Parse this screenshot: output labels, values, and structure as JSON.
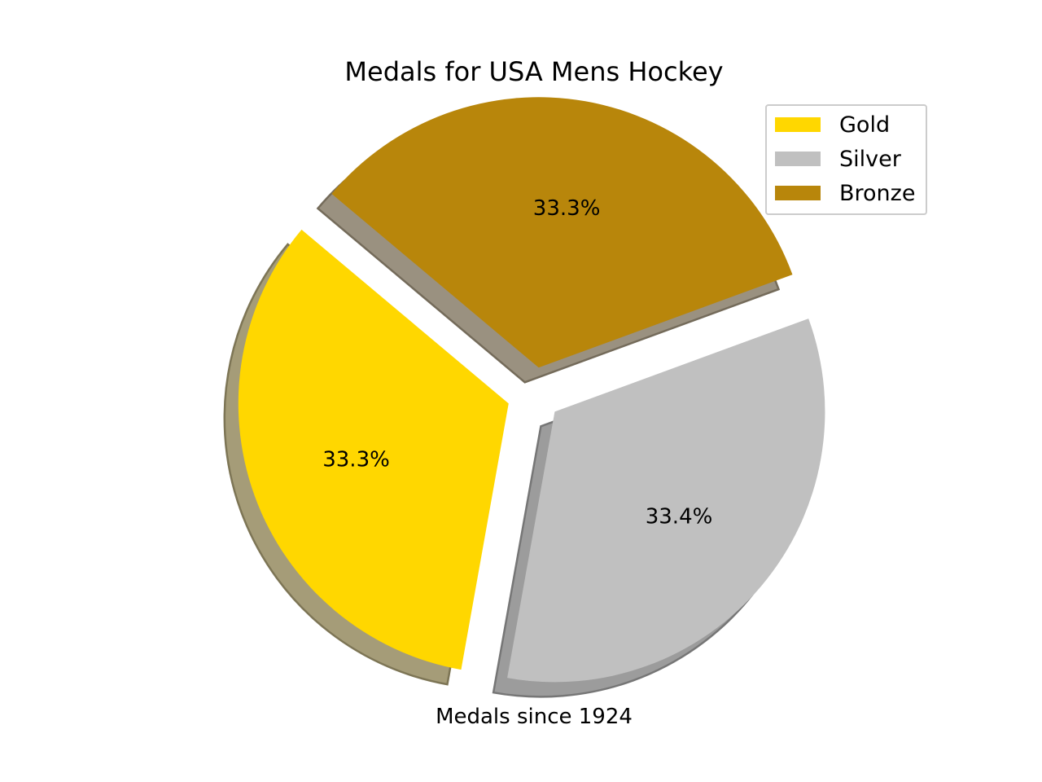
{
  "chart_data": {
    "type": "pie",
    "title": "Medals for USA Mens Hockey",
    "xlabel": "Medals since 1924",
    "categories": [
      "Gold",
      "Silver",
      "Bronze"
    ],
    "values": [
      33.3,
      33.4,
      33.3
    ],
    "value_labels": [
      "33.3%",
      "33.4%",
      "33.3%"
    ],
    "colors": [
      "#FFD700",
      "#C0C0C0",
      "#B8860B"
    ],
    "explode": [
      0.1,
      0.1,
      0.1
    ],
    "shadow": true,
    "start_angle_deg": 140,
    "legend": {
      "placement": "top-right",
      "entries": [
        "Gold",
        "Silver",
        "Bronze"
      ]
    }
  }
}
